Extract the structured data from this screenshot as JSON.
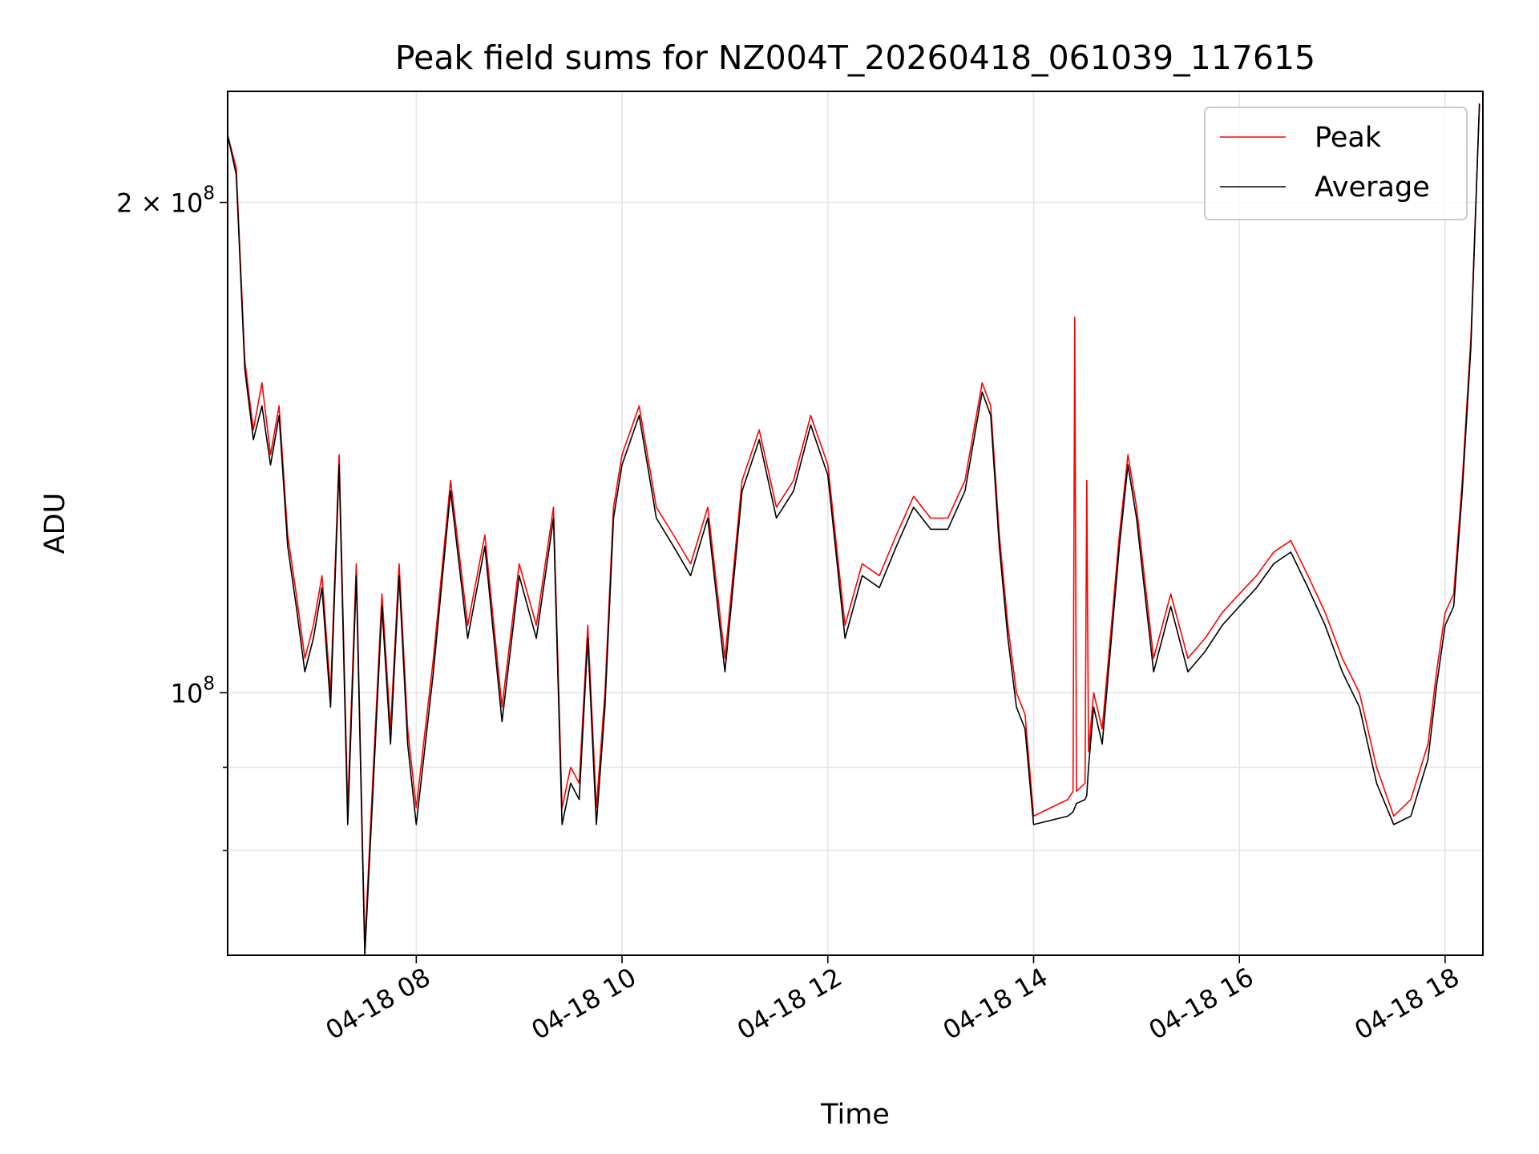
{
  "chart_data": {
    "type": "line",
    "title": "Peak field sums for NZ004T_20260418_061039_117615",
    "xlabel": "Time",
    "ylabel": "ADU",
    "y_scale": "log",
    "ylim": [
      69000000,
      234000000
    ],
    "xlim": [
      "04-18 06:10",
      "04-18 18:22"
    ],
    "grid": true,
    "legend_position": "top-right",
    "x_ticks": [
      "04-18 08",
      "04-18 10",
      "04-18 12",
      "04-18 14",
      "04-18 16",
      "04-18 18"
    ],
    "x_tick_values": [
      "04-18 08:00",
      "04-18 10:00",
      "04-18 12:00",
      "04-18 14:00",
      "04-18 16:00",
      "04-18 18:00"
    ],
    "y_major_ticks": [
      {
        "value": 100000000,
        "label_base": "10",
        "label_exp": "8"
      },
      {
        "value": 200000000,
        "label_base": "2 × 10",
        "label_exp": "8"
      }
    ],
    "y_minor_ticks": [
      80000000,
      90000000
    ],
    "series": [
      {
        "name": "Peak",
        "color": "#ff0000",
        "x": [
          "04-18 06:10",
          "04-18 06:15",
          "04-18 06:20",
          "04-18 06:25",
          "04-18 06:30",
          "04-18 06:35",
          "04-18 06:40",
          "04-18 06:45",
          "04-18 06:50",
          "04-18 06:55",
          "04-18 07:00",
          "04-18 07:05",
          "04-18 07:10",
          "04-18 07:15",
          "04-18 07:20",
          "04-18 07:25",
          "04-18 07:30",
          "04-18 07:35",
          "04-18 07:40",
          "04-18 07:45",
          "04-18 07:50",
          "04-18 07:55",
          "04-18 08:00",
          "04-18 08:10",
          "04-18 08:20",
          "04-18 08:30",
          "04-18 08:40",
          "04-18 08:50",
          "04-18 09:00",
          "04-18 09:10",
          "04-18 09:20",
          "04-18 09:25",
          "04-18 09:30",
          "04-18 09:35",
          "04-18 09:40",
          "04-18 09:45",
          "04-18 09:50",
          "04-18 09:55",
          "04-18 10:00",
          "04-18 10:10",
          "04-18 10:20",
          "04-18 10:30",
          "04-18 10:40",
          "04-18 10:50",
          "04-18 11:00",
          "04-18 11:10",
          "04-18 11:20",
          "04-18 11:30",
          "04-18 11:40",
          "04-18 11:50",
          "04-18 12:00",
          "04-18 12:10",
          "04-18 12:20",
          "04-18 12:30",
          "04-18 12:40",
          "04-18 12:50",
          "04-18 13:00",
          "04-18 13:10",
          "04-18 13:20",
          "04-18 13:30",
          "04-18 13:35",
          "04-18 13:40",
          "04-18 13:45",
          "04-18 13:50",
          "04-18 13:55",
          "04-18 14:00",
          "04-18 14:10",
          "04-18 14:20",
          "04-18 14:23",
          "04-18 14:24",
          "04-18 14:25",
          "04-18 14:30",
          "04-18 14:31",
          "04-18 14:32",
          "04-18 14:35",
          "04-18 14:40",
          "04-18 14:50",
          "04-18 14:55",
          "04-18 15:00",
          "04-18 15:10",
          "04-18 15:20",
          "04-18 15:30",
          "04-18 15:40",
          "04-18 15:50",
          "04-18 16:00",
          "04-18 16:10",
          "04-18 16:20",
          "04-18 16:30",
          "04-18 16:40",
          "04-18 16:50",
          "04-18 17:00",
          "04-18 17:10",
          "04-18 17:20",
          "04-18 17:30",
          "04-18 17:40",
          "04-18 17:50",
          "04-18 17:55",
          "04-18 18:00",
          "04-18 18:05",
          "04-18 18:10",
          "04-18 18:15",
          "04-18 18:20"
        ],
        "y": [
          220000000,
          210000000,
          160000000,
          145000000,
          155000000,
          140000000,
          150000000,
          125000000,
          115000000,
          105000000,
          110000000,
          118000000,
          100000000,
          140000000,
          85000000,
          120000000,
          70000000,
          90000000,
          115000000,
          95000000,
          120000000,
          95000000,
          85000000,
          105000000,
          135000000,
          110000000,
          125000000,
          98000000,
          120000000,
          110000000,
          130000000,
          85000000,
          90000000,
          88000000,
          110000000,
          85000000,
          100000000,
          130000000,
          140000000,
          150000000,
          130000000,
          125000000,
          120000000,
          130000000,
          105000000,
          135000000,
          145000000,
          130000000,
          135000000,
          148000000,
          138000000,
          110000000,
          120000000,
          118000000,
          125000000,
          132000000,
          128000000,
          128000000,
          135000000,
          155000000,
          150000000,
          125000000,
          110000000,
          100000000,
          97000000,
          84000000,
          85000000,
          86000000,
          87000000,
          170000000,
          87000000,
          88000000,
          135000000,
          92000000,
          100000000,
          95000000,
          125000000,
          140000000,
          130000000,
          105000000,
          115000000,
          105000000,
          108000000,
          112000000,
          115000000,
          118000000,
          122000000,
          124000000,
          118000000,
          112000000,
          105000000,
          100000000,
          90000000,
          84000000,
          86000000,
          93000000,
          103000000,
          112000000,
          115000000,
          135000000,
          165000000,
          230000000
        ]
      },
      {
        "name": "Average",
        "color": "#000000",
        "x": [
          "04-18 06:10",
          "04-18 06:15",
          "04-18 06:20",
          "04-18 06:25",
          "04-18 06:30",
          "04-18 06:35",
          "04-18 06:40",
          "04-18 06:45",
          "04-18 06:50",
          "04-18 06:55",
          "04-18 07:00",
          "04-18 07:05",
          "04-18 07:10",
          "04-18 07:15",
          "04-18 07:20",
          "04-18 07:25",
          "04-18 07:30",
          "04-18 07:35",
          "04-18 07:40",
          "04-18 07:45",
          "04-18 07:50",
          "04-18 07:55",
          "04-18 08:00",
          "04-18 08:10",
          "04-18 08:20",
          "04-18 08:30",
          "04-18 08:40",
          "04-18 08:50",
          "04-18 09:00",
          "04-18 09:10",
          "04-18 09:20",
          "04-18 09:25",
          "04-18 09:30",
          "04-18 09:35",
          "04-18 09:40",
          "04-18 09:45",
          "04-18 09:50",
          "04-18 09:55",
          "04-18 10:00",
          "04-18 10:10",
          "04-18 10:20",
          "04-18 10:30",
          "04-18 10:40",
          "04-18 10:50",
          "04-18 11:00",
          "04-18 11:10",
          "04-18 11:20",
          "04-18 11:30",
          "04-18 11:40",
          "04-18 11:50",
          "04-18 12:00",
          "04-18 12:10",
          "04-18 12:20",
          "04-18 12:30",
          "04-18 12:40",
          "04-18 12:50",
          "04-18 13:00",
          "04-18 13:10",
          "04-18 13:20",
          "04-18 13:30",
          "04-18 13:35",
          "04-18 13:40",
          "04-18 13:45",
          "04-18 13:50",
          "04-18 13:55",
          "04-18 14:00",
          "04-18 14:10",
          "04-18 14:20",
          "04-18 14:23",
          "04-18 14:24",
          "04-18 14:25",
          "04-18 14:30",
          "04-18 14:31",
          "04-18 14:32",
          "04-18 14:35",
          "04-18 14:40",
          "04-18 14:50",
          "04-18 14:55",
          "04-18 15:00",
          "04-18 15:10",
          "04-18 15:20",
          "04-18 15:30",
          "04-18 15:40",
          "04-18 15:50",
          "04-18 16:00",
          "04-18 16:10",
          "04-18 16:20",
          "04-18 16:30",
          "04-18 16:40",
          "04-18 16:50",
          "04-18 17:00",
          "04-18 17:10",
          "04-18 17:20",
          "04-18 17:30",
          "04-18 17:40",
          "04-18 17:50",
          "04-18 17:55",
          "04-18 18:00",
          "04-18 18:05",
          "04-18 18:10",
          "04-18 18:15",
          "04-18 18:20"
        ],
        "y": [
          220000000,
          208000000,
          158000000,
          143000000,
          150000000,
          138000000,
          148000000,
          123000000,
          113000000,
          103000000,
          108000000,
          116000000,
          98000000,
          138000000,
          83000000,
          118000000,
          69000000,
          88000000,
          113000000,
          93000000,
          118000000,
          93000000,
          83000000,
          103000000,
          133000000,
          108000000,
          123000000,
          96000000,
          118000000,
          108000000,
          128000000,
          83000000,
          88000000,
          86000000,
          108000000,
          83000000,
          98000000,
          128000000,
          138000000,
          148000000,
          128000000,
          123000000,
          118000000,
          128000000,
          103000000,
          133000000,
          143000000,
          128000000,
          133000000,
          146000000,
          136000000,
          108000000,
          118000000,
          116000000,
          123000000,
          130000000,
          126000000,
          126000000,
          133000000,
          153000000,
          148000000,
          123000000,
          108000000,
          98000000,
          95000000,
          83000000,
          83500000,
          84000000,
          84500000,
          85000000,
          85500000,
          86000000,
          86500000,
          90000000,
          98000000,
          93000000,
          123000000,
          138000000,
          128000000,
          103000000,
          113000000,
          103000000,
          106000000,
          110000000,
          113000000,
          116000000,
          120000000,
          122000000,
          116000000,
          110000000,
          103000000,
          98000000,
          88000000,
          83000000,
          84000000,
          91000000,
          101000000,
          110000000,
          113000000,
          133000000,
          163000000,
          230000000
        ]
      }
    ]
  }
}
